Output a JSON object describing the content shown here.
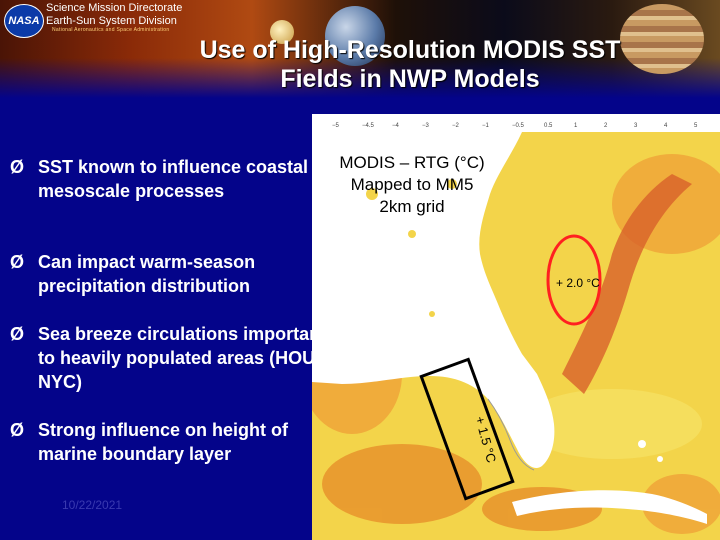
{
  "header": {
    "logo_text": "NASA",
    "line1": "Science Mission Directorate",
    "line2": "Earth-Sun System Division",
    "agency": "National Aeronautics and Space Administration"
  },
  "title": {
    "line1": "Use of High-Resolution MODIS SST",
    "line2": "Fields in NWP Models"
  },
  "bullets": [
    {
      "arrow": "Ø",
      "text": "SST known to influence coastal mesoscale processes"
    },
    {
      "arrow": "Ø",
      "text": "Can impact warm-season precipitation distribution"
    },
    {
      "arrow": "Ø",
      "text": "Sea breeze circulations important to heavily populated areas (HOU, NYC)"
    },
    {
      "arrow": "Ø",
      "text": "Strong influence on height of marine boundary layer"
    }
  ],
  "date": "10/22/2021",
  "map": {
    "label_line1": "MODIS – RTG (°C)",
    "label_line2": "Mapped to MM5",
    "label_line3": "2km grid",
    "annotation_circle": "+ 2.0 °C",
    "annotation_box": "+ 1.5 °C",
    "colors": {
      "land": "#ffffff",
      "warm_sea": "#f0a83a",
      "cool_sea": "#f6e060",
      "hot_sea": "#d8602a",
      "circle": "#ff2020",
      "box": "#000000"
    }
  }
}
